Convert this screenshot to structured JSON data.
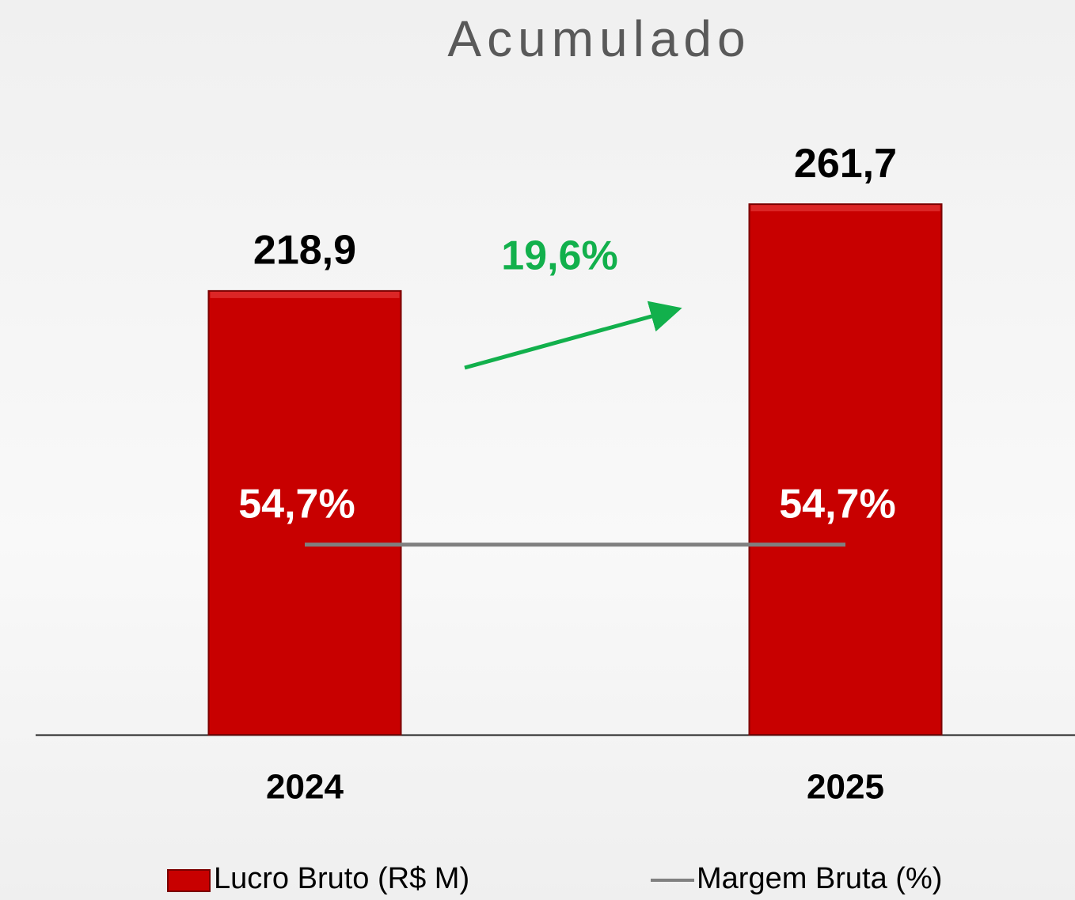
{
  "chart_data": {
    "type": "bar",
    "title": "Acumulado",
    "categories": [
      "2024",
      "2025"
    ],
    "series": [
      {
        "name": "Lucro Bruto (R$ M)",
        "color": "#c80000",
        "values": [
          218.9,
          261.7
        ],
        "value_labels": [
          "218,9",
          "261,7"
        ]
      },
      {
        "name": "Margem Bruta (%)",
        "color": "#808080",
        "type": "line",
        "axis": "y2",
        "values": [
          54.7,
          54.7
        ],
        "value_labels": [
          "54,7%",
          "54,7%"
        ]
      }
    ],
    "ylim": [
      0,
      300
    ],
    "y2lim": [
      0,
      175
    ],
    "annotation": "19,6%",
    "annotation_color": "#12b04c"
  }
}
